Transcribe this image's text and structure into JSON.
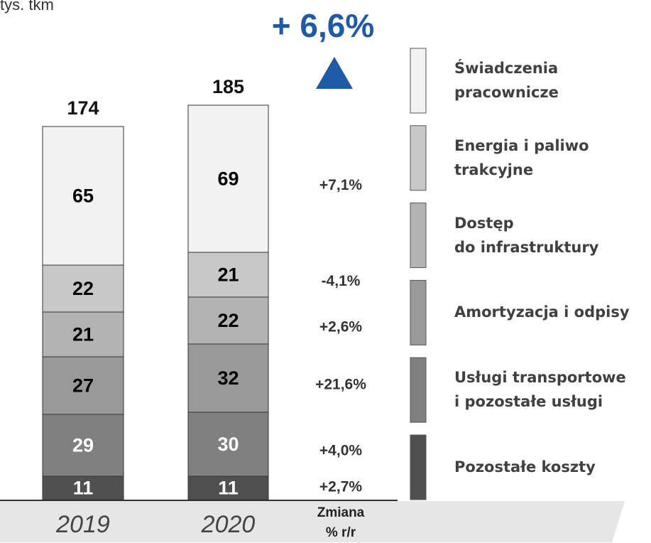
{
  "chart_data": {
    "type": "stacked-bar",
    "unit": "tys. tkm",
    "headline": "+ 6,6%",
    "change_axis_label": "Zmiana\n% r/r",
    "categories": [
      "2019",
      "2020"
    ],
    "totals": [
      174,
      185
    ],
    "ylim": [
      0,
      185
    ],
    "series": [
      {
        "name": "Pozostałe koszty",
        "color": "#505050",
        "values": [
          11,
          11
        ],
        "change": "+2,7%",
        "label_color": "#ffffff"
      },
      {
        "name": "Usługi transportowe\n i pozostałe usługi",
        "color": "#808080",
        "values": [
          29,
          30
        ],
        "change": "+4,0%",
        "label_color": "#ffffff"
      },
      {
        "name": "Amortyzacja i odpisy",
        "color": "#999999",
        "values": [
          27,
          32
        ],
        "change": "+21,6%",
        "label_color": "#000000"
      },
      {
        "name": "Dostęp\ndo infrastruktury",
        "color": "#b3b3b3",
        "values": [
          21,
          22
        ],
        "change": "+2,6%",
        "label_color": "#000000"
      },
      {
        "name": "Energia i paliwo\ntrakcyjne",
        "color": "#c8c8c8",
        "values": [
          22,
          21
        ],
        "change": "-4,1%",
        "label_color": "#000000"
      },
      {
        "name": "Świadczenia\npracownicze",
        "color": "#f2f2f2",
        "values": [
          65,
          69
        ],
        "change": "+7,1%",
        "label_color": "#000000"
      }
    ]
  }
}
